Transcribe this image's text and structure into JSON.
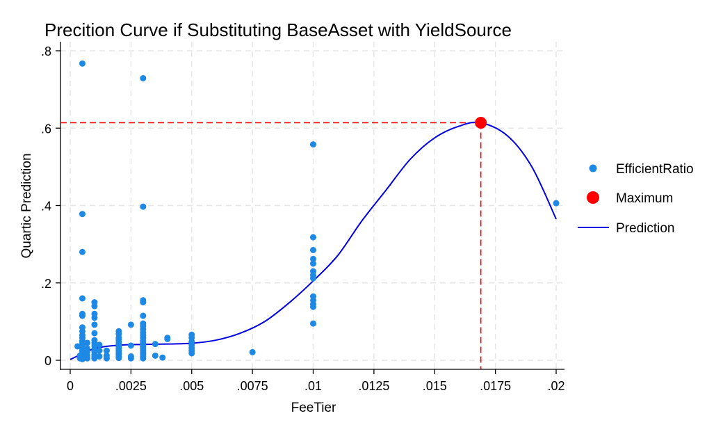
{
  "chart_data": {
    "type": "scatter",
    "title": "Precition Curve if Substituting BaseAsset with YieldSource",
    "xlabel": "FeeTier",
    "ylabel": "Quartic Prediction",
    "xlim": [
      0,
      0.02
    ],
    "ylim": [
      0,
      0.8
    ],
    "xticks": [
      0,
      0.0025,
      0.005,
      0.0075,
      0.01,
      0.0125,
      0.015,
      0.0175,
      0.02
    ],
    "xtick_labels": [
      "0",
      ".0025",
      ".005",
      ".0075",
      ".01",
      ".0125",
      ".015",
      ".0175",
      ".02"
    ],
    "yticks": [
      0,
      0.2,
      0.4,
      0.6,
      0.8
    ],
    "ytick_labels": [
      "0",
      ".2",
      ".4",
      ".6",
      ".8"
    ],
    "grid": true,
    "legend_position": "right",
    "series": [
      {
        "name": "EfficientRatio",
        "kind": "scatter",
        "color": "#1e88e5",
        "points": [
          [
            0.0003,
            0.036
          ],
          [
            0.0004,
            0.012
          ],
          [
            0.0004,
            0.005
          ],
          [
            0.0005,
            0.767
          ],
          [
            0.0005,
            0.378
          ],
          [
            0.0005,
            0.28
          ],
          [
            0.0005,
            0.16
          ],
          [
            0.0005,
            0.12
          ],
          [
            0.0005,
            0.115
          ],
          [
            0.0005,
            0.085
          ],
          [
            0.0005,
            0.075
          ],
          [
            0.0005,
            0.065
          ],
          [
            0.0005,
            0.058
          ],
          [
            0.0005,
            0.05
          ],
          [
            0.0005,
            0.045
          ],
          [
            0.0005,
            0.04
          ],
          [
            0.0005,
            0.035
          ],
          [
            0.0005,
            0.03
          ],
          [
            0.0005,
            0.025
          ],
          [
            0.0005,
            0.02
          ],
          [
            0.0005,
            0.015
          ],
          [
            0.0005,
            0.01
          ],
          [
            0.0005,
            0.006
          ],
          [
            0.0005,
            0.003
          ],
          [
            0.0007,
            0.045
          ],
          [
            0.0007,
            0.03
          ],
          [
            0.0007,
            0.022
          ],
          [
            0.0007,
            0.012
          ],
          [
            0.0007,
            0.005
          ],
          [
            0.001,
            0.15
          ],
          [
            0.001,
            0.14
          ],
          [
            0.001,
            0.12
          ],
          [
            0.001,
            0.11
          ],
          [
            0.001,
            0.092
          ],
          [
            0.001,
            0.07
          ],
          [
            0.001,
            0.052
          ],
          [
            0.001,
            0.045
          ],
          [
            0.001,
            0.038
          ],
          [
            0.001,
            0.03
          ],
          [
            0.001,
            0.022
          ],
          [
            0.001,
            0.015
          ],
          [
            0.001,
            0.01
          ],
          [
            0.001,
            0.005
          ],
          [
            0.0012,
            0.04
          ],
          [
            0.0012,
            0.025
          ],
          [
            0.0012,
            0.01
          ],
          [
            0.0015,
            0.025
          ],
          [
            0.0015,
            0.012
          ],
          [
            0.0015,
            0.005
          ],
          [
            0.002,
            0.075
          ],
          [
            0.002,
            0.068
          ],
          [
            0.002,
            0.058
          ],
          [
            0.002,
            0.052
          ],
          [
            0.002,
            0.045
          ],
          [
            0.002,
            0.04
          ],
          [
            0.002,
            0.035
          ],
          [
            0.002,
            0.03
          ],
          [
            0.002,
            0.025
          ],
          [
            0.002,
            0.02
          ],
          [
            0.002,
            0.015
          ],
          [
            0.002,
            0.01
          ],
          [
            0.002,
            0.006
          ],
          [
            0.0025,
            0.092
          ],
          [
            0.0025,
            0.038
          ],
          [
            0.0025,
            0.01
          ],
          [
            0.0025,
            0.005
          ],
          [
            0.003,
            0.729
          ],
          [
            0.003,
            0.397
          ],
          [
            0.003,
            0.155
          ],
          [
            0.003,
            0.15
          ],
          [
            0.003,
            0.115
          ],
          [
            0.003,
            0.095
          ],
          [
            0.003,
            0.088
          ],
          [
            0.003,
            0.08
          ],
          [
            0.003,
            0.072
          ],
          [
            0.003,
            0.065
          ],
          [
            0.003,
            0.058
          ],
          [
            0.003,
            0.05
          ],
          [
            0.003,
            0.045
          ],
          [
            0.003,
            0.04
          ],
          [
            0.003,
            0.035
          ],
          [
            0.003,
            0.03
          ],
          [
            0.003,
            0.025
          ],
          [
            0.003,
            0.02
          ],
          [
            0.003,
            0.015
          ],
          [
            0.003,
            0.01
          ],
          [
            0.003,
            0.005
          ],
          [
            0.0035,
            0.042
          ],
          [
            0.0035,
            0.012
          ],
          [
            0.0038,
            0.007
          ],
          [
            0.004,
            0.058
          ],
          [
            0.004,
            0.055
          ],
          [
            0.005,
            0.066
          ],
          [
            0.005,
            0.058
          ],
          [
            0.005,
            0.048
          ],
          [
            0.005,
            0.04
          ],
          [
            0.005,
            0.032
          ],
          [
            0.005,
            0.025
          ],
          [
            0.005,
            0.018
          ],
          [
            0.0075,
            0.021
          ],
          [
            0.01,
            0.558
          ],
          [
            0.01,
            0.318
          ],
          [
            0.01,
            0.285
          ],
          [
            0.01,
            0.262
          ],
          [
            0.01,
            0.25
          ],
          [
            0.01,
            0.23
          ],
          [
            0.01,
            0.22
          ],
          [
            0.01,
            0.212
          ],
          [
            0.01,
            0.165
          ],
          [
            0.01,
            0.155
          ],
          [
            0.01,
            0.145
          ],
          [
            0.01,
            0.138
          ],
          [
            0.01,
            0.095
          ],
          [
            0.02,
            0.406
          ]
        ]
      },
      {
        "name": "Maximum",
        "kind": "marker",
        "color": "#ff0000",
        "points": [
          [
            0.0169,
            0.614
          ]
        ]
      },
      {
        "name": "Prediction",
        "kind": "line",
        "color": "#0000e0",
        "x": [
          0,
          0.001,
          0.002,
          0.003,
          0.004,
          0.005,
          0.006,
          0.007,
          0.008,
          0.009,
          0.01,
          0.011,
          0.012,
          0.013,
          0.014,
          0.015,
          0.016,
          0.0169,
          0.018,
          0.019,
          0.02
        ],
        "values": [
          0.002,
          0.03,
          0.039,
          0.041,
          0.042,
          0.044,
          0.052,
          0.07,
          0.1,
          0.148,
          0.205,
          0.27,
          0.36,
          0.44,
          0.52,
          0.575,
          0.605,
          0.614,
          0.58,
          0.5,
          0.365
        ]
      }
    ],
    "reference_lines": {
      "color": "#ff0000",
      "horizontal_y": 0.614,
      "vertical_x": 0.0169
    }
  }
}
